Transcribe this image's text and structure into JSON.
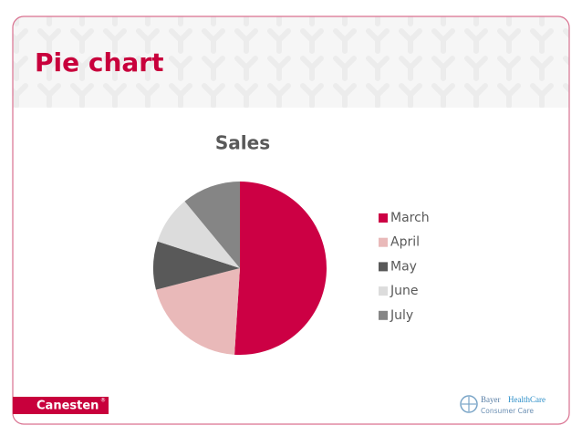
{
  "slide": {
    "title": "Pie chart",
    "brand": "Canesten",
    "brand_mark": "®",
    "company": "Bayer",
    "division": "HealthCare",
    "division_sub": "Consumer Care"
  },
  "chart_data": {
    "type": "pie",
    "title": "Sales",
    "categories": [
      "March",
      "April",
      "May",
      "June",
      "July"
    ],
    "values": [
      51,
      20,
      9,
      9,
      11
    ],
    "colors": [
      "#cc0044",
      "#e9b9b9",
      "#595959",
      "#dcdcdc",
      "#858585"
    ],
    "legend": "right"
  }
}
